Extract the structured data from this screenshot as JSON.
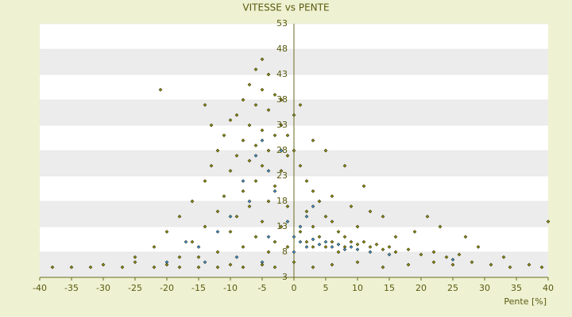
{
  "chart_data": {
    "type": "scatter",
    "title": "VITESSE vs PENTE",
    "x_label": "Pente [%]",
    "xlim": [
      -40,
      40
    ],
    "xticks": [
      -40,
      -35,
      -30,
      -25,
      -20,
      -15,
      -10,
      -5,
      0,
      5,
      10,
      15,
      20,
      25,
      30,
      35,
      40
    ],
    "ylim": [
      3,
      53
    ],
    "yticks": [
      3,
      8,
      13,
      18,
      23,
      28,
      33,
      38,
      43,
      48,
      53
    ],
    "grid": true,
    "bands": [
      "#ffffff",
      "#ececec"
    ],
    "series": [
      {
        "color": "#8a8a10",
        "x": [
          -38,
          -35,
          -32,
          -30,
          -27,
          -25,
          -22,
          -20,
          -18,
          -15,
          -12,
          -10,
          -8,
          -5,
          -3,
          0,
          3,
          6,
          10,
          14,
          18,
          22,
          25,
          28,
          31,
          34,
          37,
          39,
          -5,
          -6,
          -4,
          -7,
          -5,
          -3,
          -8,
          -6,
          -4,
          -9,
          -10,
          -2,
          -7,
          -5,
          -11,
          -3,
          -8,
          -6,
          -12,
          -4,
          -1,
          -9,
          -7,
          -13,
          -5,
          -2,
          -10,
          -14,
          -6,
          -3,
          -8,
          -11,
          -16,
          -4,
          -1,
          -7,
          -12,
          -18,
          -9,
          -5,
          -2,
          -14,
          -20,
          -10,
          -6,
          -3,
          -16,
          -22,
          -8,
          -12,
          -4,
          -18,
          -25,
          -1,
          -15,
          -21,
          -14,
          -13,
          -2,
          0,
          1,
          -1,
          0,
          1,
          2,
          3,
          4,
          2,
          5,
          6,
          3,
          7,
          8,
          4,
          9,
          10,
          11,
          12,
          13,
          14,
          15,
          16,
          18,
          20,
          22,
          24,
          26,
          5,
          6,
          7,
          8,
          2,
          3,
          1,
          11,
          14,
          16,
          19,
          23,
          27,
          29,
          33,
          40,
          21,
          10,
          12,
          8,
          5,
          3,
          6,
          9
        ],
        "y": [
          5,
          5,
          5,
          5.5,
          5,
          6,
          5,
          5.5,
          5,
          5,
          5,
          5.5,
          5,
          5.5,
          5,
          6,
          5,
          5.5,
          6,
          5,
          5.5,
          6,
          5.5,
          6,
          5.5,
          5,
          5.5,
          5,
          46,
          44,
          43,
          41,
          40,
          39,
          38,
          37,
          36,
          35,
          34,
          33,
          33,
          32,
          31,
          31,
          30,
          29,
          28,
          28,
          27,
          27,
          26,
          25,
          25,
          24,
          24,
          22,
          22,
          21,
          20,
          19,
          18,
          18,
          17,
          17,
          16,
          15,
          15,
          14,
          13,
          13,
          12,
          12,
          11,
          10,
          10,
          9,
          9,
          8,
          8,
          7,
          7,
          9,
          7,
          40,
          37,
          33,
          38,
          35,
          37,
          31,
          28,
          25,
          22,
          20,
          18,
          16,
          15,
          14,
          13,
          12,
          11,
          11,
          10,
          9.5,
          10,
          9,
          9.5,
          8.5,
          9,
          8,
          8.5,
          7.5,
          8,
          7,
          7.5,
          9,
          10,
          8,
          9,
          10,
          9,
          12,
          21,
          15,
          11,
          12,
          13,
          11,
          9,
          7,
          14,
          15,
          13,
          16,
          25,
          28,
          30,
          19,
          17
        ]
      },
      {
        "color": "#3a8fd8",
        "x": [
          -5,
          -6,
          -4,
          -8,
          -3,
          -7,
          -10,
          -12,
          -15,
          -17,
          -2,
          -1,
          0,
          1,
          2,
          3,
          4,
          5,
          6,
          7,
          8,
          1,
          2,
          3,
          9,
          10,
          -14,
          -9,
          -5,
          -20,
          12,
          15,
          25,
          -4,
          0
        ],
        "y": [
          30,
          27,
          24,
          22,
          20,
          18,
          15,
          12,
          9,
          10,
          28,
          14,
          11,
          10,
          9,
          10.5,
          9.5,
          10,
          9,
          9.5,
          8.5,
          13,
          15,
          17,
          9,
          8.5,
          6,
          7,
          6,
          6,
          8,
          7.5,
          6.5,
          11,
          8
        ]
      }
    ]
  }
}
